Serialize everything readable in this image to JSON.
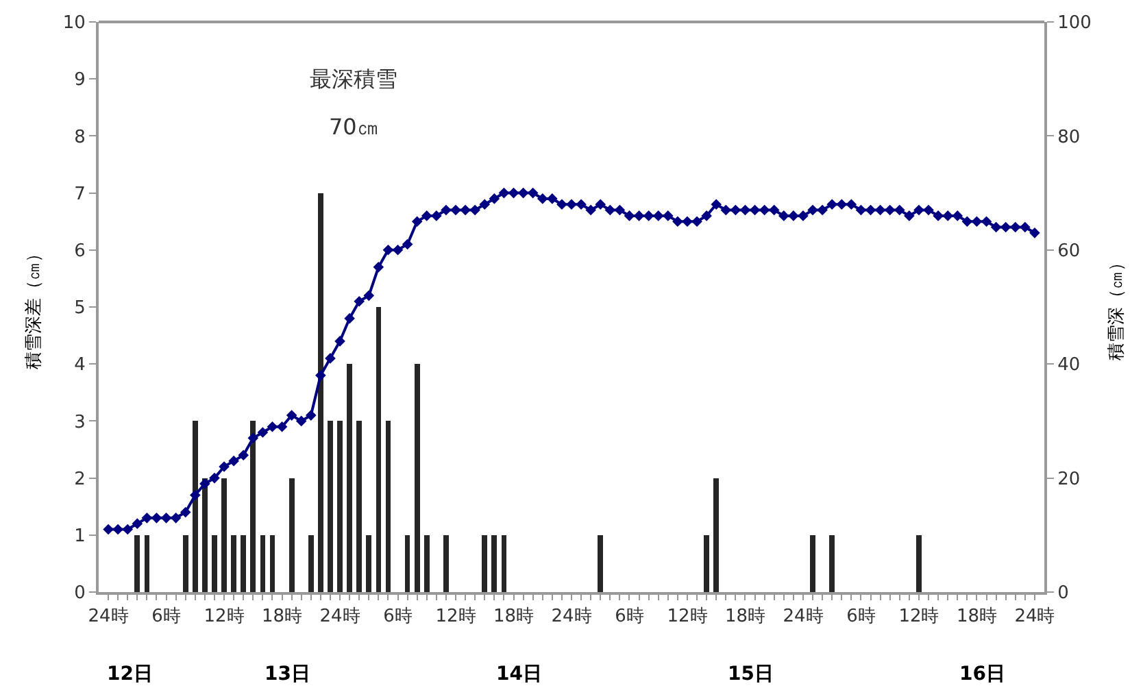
{
  "chart_data": {
    "type": "bar",
    "ylabel": "積雪深差（㎝）",
    "y2label": "積雪深（㎝）",
    "annotations": [
      "最深積雪",
      "70㎝",
      "12日",
      "13日",
      "14日",
      "15日",
      "16日"
    ],
    "categories": [
      "24時",
      null,
      null,
      null,
      null,
      null,
      "6時",
      null,
      null,
      null,
      null,
      null,
      "12時",
      null,
      null,
      null,
      null,
      null,
      "18時",
      null,
      null,
      null,
      null,
      null,
      "24時",
      null,
      null,
      null,
      null,
      null,
      "6時",
      null,
      null,
      null,
      null,
      null,
      "12時",
      null,
      null,
      null,
      null,
      null,
      "18時",
      null,
      null,
      null,
      null,
      null,
      "24時",
      null,
      null,
      null,
      null,
      null,
      "6時",
      null,
      null,
      null,
      null,
      null,
      "12時",
      null,
      null,
      null,
      null,
      null,
      "18時",
      null,
      null,
      null,
      null,
      null,
      "24時",
      null,
      null,
      null,
      null,
      null,
      "6時",
      null,
      null,
      null,
      null,
      null,
      "12時",
      null,
      null,
      null,
      null,
      null,
      "18時",
      null,
      null,
      null,
      null,
      null,
      "24時"
    ],
    "series": [
      {
        "color": "#262626",
        "values": [
          0,
          0,
          0,
          1,
          1,
          0,
          0,
          0,
          1,
          3,
          2,
          1,
          2,
          1,
          1,
          3,
          1,
          1,
          0,
          2,
          0,
          1,
          7,
          3,
          3,
          4,
          3,
          1,
          5,
          3,
          0,
          1,
          4,
          1,
          0,
          1,
          0,
          0,
          0,
          1,
          1,
          1,
          0,
          0,
          0,
          0,
          0,
          0,
          0,
          0,
          0,
          1,
          0,
          0,
          0,
          0,
          0,
          0,
          0,
          0,
          0,
          0,
          1,
          2,
          0,
          0,
          0,
          0,
          0,
          0,
          0,
          0,
          0,
          1,
          0,
          1,
          0,
          0,
          0,
          0,
          0,
          0,
          0,
          0,
          1,
          0,
          0,
          0,
          0,
          0,
          0,
          0,
          0,
          0,
          0,
          0,
          0
        ]
      },
      {
        "type": "line",
        "axis": "y2",
        "color": "#000080",
        "marker": "diamond",
        "line_style": "solid",
        "values": [
          11,
          11,
          11,
          12,
          13,
          13,
          13,
          13,
          14,
          17,
          19,
          20,
          22,
          23,
          24,
          27,
          28,
          29,
          29,
          31,
          30,
          31,
          38,
          41,
          44,
          48,
          51,
          52,
          57,
          60,
          60,
          61,
          65,
          66,
          66,
          67,
          67,
          67,
          67,
          68,
          69,
          70,
          70,
          70,
          70,
          69,
          69,
          68,
          68,
          68,
          67,
          68,
          67,
          67,
          66,
          66,
          66,
          66,
          66,
          65,
          65,
          65,
          66,
          68,
          67,
          67,
          67,
          67,
          67,
          67,
          66,
          66,
          66,
          67,
          67,
          68,
          68,
          68,
          67,
          67,
          67,
          67,
          67,
          66,
          67,
          67,
          66,
          66,
          66,
          65,
          65,
          65,
          64,
          64,
          64,
          64,
          63
        ]
      }
    ],
    "ylim": [
      0,
      10
    ],
    "yticks": [
      0,
      1,
      2,
      3,
      4,
      5,
      6,
      7,
      8,
      9,
      10
    ],
    "y2lim": [
      0,
      100
    ],
    "y2ticks": [
      0,
      20,
      40,
      60,
      80,
      100
    ],
    "grid": false
  }
}
